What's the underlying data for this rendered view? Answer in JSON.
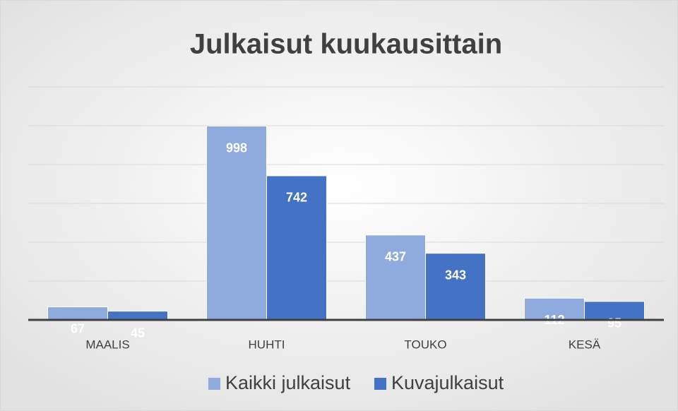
{
  "chart_data": {
    "type": "bar",
    "title": "Julkaisut kuukausittain",
    "categories": [
      "MAALIS",
      "HUHTI",
      "TOUKO",
      "KESÄ"
    ],
    "series": [
      {
        "name": "Kaikki julkaisut",
        "color": "#8faadc",
        "values": [
          67,
          998,
          437,
          112
        ]
      },
      {
        "name": "Kuvajulkaisut",
        "color": "#4472c4",
        "values": [
          45,
          742,
          343,
          95
        ]
      }
    ],
    "ylim": [
      0,
      1200
    ],
    "yticks": [
      0,
      200,
      400,
      600,
      800,
      1000,
      1200
    ],
    "grid": true,
    "legend": "bottom"
  }
}
